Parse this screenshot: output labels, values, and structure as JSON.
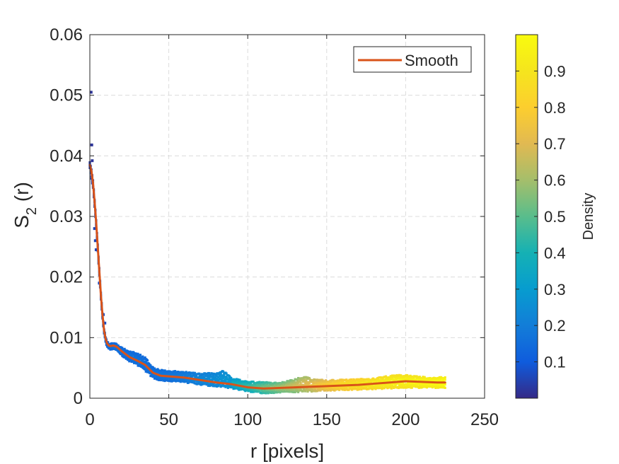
{
  "chart_data": {
    "type": "scatter",
    "title": "",
    "xlabel": "r [pixels]",
    "ylabel_main": "S",
    "ylabel_sub": "2",
    "ylabel_tail": " (r)",
    "xlim": [
      0,
      250
    ],
    "ylim": [
      0,
      0.06
    ],
    "xticks": [
      0,
      50,
      100,
      150,
      200,
      250
    ],
    "xtick_labels": [
      "0",
      "50",
      "100",
      "150",
      "200",
      "250"
    ],
    "yticks": [
      0,
      0.01,
      0.02,
      0.03,
      0.04,
      0.05,
      0.06
    ],
    "ytick_labels": [
      "0",
      "0.01",
      "0.02",
      "0.03",
      "0.04",
      "0.05",
      "0.06"
    ],
    "grid": true,
    "legend": {
      "placement": "top-right",
      "entries": [
        "Smooth"
      ]
    },
    "smooth_series": {
      "name": "Smooth",
      "color": "#D95319",
      "x": [
        0,
        1,
        2,
        3,
        4,
        5,
        6,
        7,
        8,
        9,
        10,
        11,
        12,
        13,
        15,
        17,
        20,
        25,
        30,
        35,
        40,
        45,
        50,
        60,
        70,
        80,
        90,
        100,
        110,
        120,
        130,
        140,
        150,
        160,
        170,
        180,
        190,
        200,
        210,
        220,
        225
      ],
      "y": [
        0.0385,
        0.0375,
        0.0355,
        0.0325,
        0.029,
        0.025,
        0.021,
        0.017,
        0.0138,
        0.0112,
        0.0098,
        0.009,
        0.0087,
        0.0086,
        0.0087,
        0.0085,
        0.0078,
        0.0068,
        0.0062,
        0.0055,
        0.0042,
        0.0037,
        0.0036,
        0.0034,
        0.003,
        0.0026,
        0.0023,
        0.0018,
        0.0016,
        0.0017,
        0.0018,
        0.0019,
        0.002,
        0.0021,
        0.0022,
        0.0024,
        0.0026,
        0.0028,
        0.0027,
        0.0026,
        0.0026
      ]
    },
    "scatter_band": {
      "description_x": [
        0,
        1,
        2,
        3,
        4,
        5,
        6,
        7,
        8,
        9,
        10,
        11,
        12,
        13,
        15,
        17,
        20,
        25,
        30,
        35,
        40,
        45,
        50,
        60,
        70,
        80,
        85,
        90,
        100,
        110,
        120,
        130,
        135,
        140,
        150,
        160,
        170,
        180,
        190,
        200,
        210,
        220,
        225
      ],
      "upper": [
        0.039,
        0.038,
        0.036,
        0.033,
        0.0295,
        0.0255,
        0.0215,
        0.0175,
        0.0142,
        0.0115,
        0.0102,
        0.0094,
        0.0091,
        0.009,
        0.0092,
        0.009,
        0.0084,
        0.0078,
        0.0075,
        0.0068,
        0.0052,
        0.0047,
        0.0046,
        0.0044,
        0.0041,
        0.0043,
        0.0046,
        0.0034,
        0.0028,
        0.0027,
        0.0026,
        0.0032,
        0.0037,
        0.0033,
        0.003,
        0.0031,
        0.0032,
        0.0033,
        0.0038,
        0.0039,
        0.0036,
        0.0035,
        0.0035
      ],
      "lower": [
        0.038,
        0.036,
        0.0345,
        0.0315,
        0.0282,
        0.0242,
        0.0202,
        0.0162,
        0.013,
        0.0106,
        0.0092,
        0.0084,
        0.0081,
        0.008,
        0.0081,
        0.0079,
        0.0071,
        0.0061,
        0.0054,
        0.0045,
        0.0033,
        0.0029,
        0.0028,
        0.0026,
        0.0022,
        0.0019,
        0.0018,
        0.0016,
        0.0011,
        0.0008,
        0.0009,
        0.001,
        0.001,
        0.0011,
        0.0012,
        0.0013,
        0.0014,
        0.0015,
        0.0016,
        0.0017,
        0.0017,
        0.0017,
        0.0017
      ],
      "density": [
        0.02,
        0.03,
        0.04,
        0.05,
        0.06,
        0.07,
        0.08,
        0.09,
        0.1,
        0.11,
        0.12,
        0.12,
        0.13,
        0.13,
        0.14,
        0.14,
        0.14,
        0.14,
        0.14,
        0.14,
        0.14,
        0.15,
        0.15,
        0.17,
        0.2,
        0.22,
        0.24,
        0.27,
        0.35,
        0.43,
        0.5,
        0.55,
        0.58,
        0.62,
        0.7,
        0.76,
        0.8,
        0.84,
        0.86,
        0.87,
        0.89,
        0.91,
        0.93
      ],
      "outliers": [
        {
          "x": 0.8,
          "y": 0.0505,
          "d": 0.02
        },
        {
          "x": 1.2,
          "y": 0.0418,
          "d": 0.02
        },
        {
          "x": 1.5,
          "y": 0.0392,
          "d": 0.02
        },
        {
          "x": 3.0,
          "y": 0.028,
          "d": 0.05
        },
        {
          "x": 3.5,
          "y": 0.026,
          "d": 0.05
        },
        {
          "x": 4.0,
          "y": 0.0245,
          "d": 0.05
        },
        {
          "x": 6.0,
          "y": 0.019,
          "d": 0.06
        },
        {
          "x": 8.5,
          "y": 0.0138,
          "d": 0.07
        },
        {
          "x": 9.5,
          "y": 0.0124,
          "d": 0.07
        }
      ]
    },
    "colorbar": {
      "label": "Density",
      "range": [
        0,
        1
      ],
      "ticks": [
        0.1,
        0.2,
        0.3,
        0.4,
        0.5,
        0.6,
        0.7,
        0.8,
        0.9
      ],
      "tick_labels": [
        "0.1",
        "0.2",
        "0.3",
        "0.4",
        "0.5",
        "0.6",
        "0.7",
        "0.8",
        "0.9"
      ],
      "colormap": "parula"
    }
  }
}
